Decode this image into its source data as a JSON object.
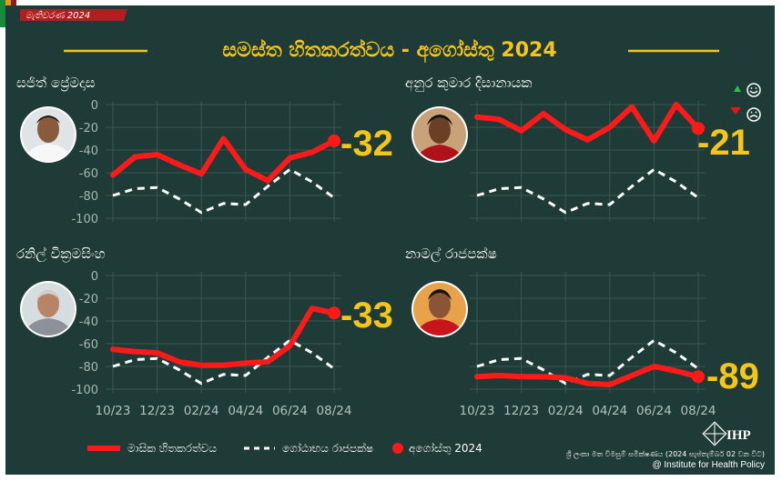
{
  "badge_text": "මැතිවරණ 2024",
  "title": "සමස්ත හිතකරත්වය - අගෝස්තු 2024",
  "colors": {
    "background": "#1f3b37",
    "accent": "#f5c518",
    "series_main": "#ff1a1a",
    "series_ref": "#ffffff",
    "grid": "#3b5752",
    "flag_orange": "#e8961a",
    "flag_green": "#1a8a3a",
    "badge_red": "#b01f1f"
  },
  "chart_data": [
    {
      "type": "line",
      "title": "සජිත් ප්‍රේමදාස",
      "x": [
        "10/23",
        "11/23",
        "12/23",
        "01/24",
        "02/24",
        "03/24",
        "04/24",
        "05/24",
        "06/24",
        "07/24",
        "08/24"
      ],
      "ylim": [
        -100,
        0
      ],
      "yticks": [
        "0",
        "-20",
        "-40",
        "-60",
        "-80",
        "-100"
      ],
      "series": [
        {
          "name": "මාසික හිතකරත්වය",
          "values": [
            -62,
            -46,
            -44,
            -53,
            -61,
            -30,
            -57,
            -67,
            -47,
            -42,
            -32
          ]
        },
        {
          "name": "ගෝඨාභය රාජපක්ෂ",
          "values": [
            -80,
            -74,
            -73,
            -83,
            -95,
            -87,
            -88,
            -72,
            -57,
            -68,
            -82
          ]
        }
      ],
      "latest_label": "-32",
      "show_xticks": false
    },
    {
      "type": "line",
      "title": "අනුර කුමාර දිසානායක",
      "x": [
        "10/23",
        "11/23",
        "12/23",
        "01/24",
        "02/24",
        "03/24",
        "04/24",
        "05/24",
        "06/24",
        "07/24",
        "08/24"
      ],
      "ylim": [
        -100,
        0
      ],
      "yticks": [
        "0",
        "-20",
        "-40",
        "-60",
        "-80",
        "-100"
      ],
      "series": [
        {
          "name": "මාසික හිතකරත්වය",
          "values": [
            -11,
            -13,
            -23,
            -8,
            -22,
            -31,
            -20,
            -2,
            -32,
            0,
            -21
          ]
        },
        {
          "name": "ගෝඨාභය රාජපක්ෂ",
          "values": [
            -80,
            -74,
            -73,
            -83,
            -95,
            -87,
            -88,
            -72,
            -57,
            -68,
            -82
          ]
        }
      ],
      "latest_label": "-21",
      "show_xticks": false
    },
    {
      "type": "line",
      "title": "රනිල් වික්‍රමසිංහ",
      "x": [
        "10/23",
        "11/23",
        "12/23",
        "01/24",
        "02/24",
        "03/24",
        "04/24",
        "05/24",
        "06/24",
        "07/24",
        "08/24"
      ],
      "ylim": [
        -100,
        0
      ],
      "yticks": [
        "0",
        "-20",
        "-40",
        "-60",
        "-80",
        "-100"
      ],
      "series": [
        {
          "name": "මාසික හිතකරත්වය",
          "values": [
            -65,
            -67,
            -68,
            -76,
            -79,
            -79,
            -77,
            -76,
            -62,
            -29,
            -33
          ]
        },
        {
          "name": "ගෝඨාභය රාජපක්ෂ",
          "values": [
            -80,
            -74,
            -73,
            -83,
            -95,
            -87,
            -88,
            -72,
            -57,
            -68,
            -82
          ]
        }
      ],
      "latest_label": "-33",
      "show_xticks": true
    },
    {
      "type": "line",
      "title": "නාමල් රාජපක්ෂ",
      "x": [
        "10/23",
        "11/23",
        "12/23",
        "01/24",
        "02/24",
        "03/24",
        "04/24",
        "05/24",
        "06/24",
        "07/24",
        "08/24"
      ],
      "ylim": [
        -100,
        0
      ],
      "yticks": [
        "0",
        "-20",
        "-40",
        "-60",
        "-80",
        "-100"
      ],
      "series": [
        {
          "name": "මාසික හිතකරත්වය",
          "values": [
            -89,
            -88,
            -89,
            -89,
            -90,
            -95,
            -96,
            -88,
            -80,
            -84,
            -89
          ]
        },
        {
          "name": "ගෝඨාභය රාජපක්ෂ",
          "values": [
            -80,
            -74,
            -73,
            -83,
            -95,
            -87,
            -88,
            -72,
            -57,
            -68,
            -82
          ]
        }
      ],
      "latest_label": "-89",
      "show_xticks": true
    }
  ],
  "xtick_labels": [
    "10/23",
    "12/23",
    "02/24",
    "04/24",
    "06/24",
    "08/24"
  ],
  "legend": {
    "monthly": "මාසික හිතකරත්වය",
    "reference": "ගෝඨාභය රාජපක්ෂ",
    "latest": "අගෝස්තු 2024"
  },
  "trend_icons": [
    "up-arrow-icon",
    "smile-icon",
    "down-arrow-icon",
    "frown-icon"
  ],
  "footer": {
    "logo_text": "IHP",
    "source_line": "ශ්‍රී ලංකා මත විමසුම් සමීක්ෂණය (2024 සැප්තැම්බර් 02 වන විට)",
    "credit_line": "@ Institute for Health Policy"
  }
}
